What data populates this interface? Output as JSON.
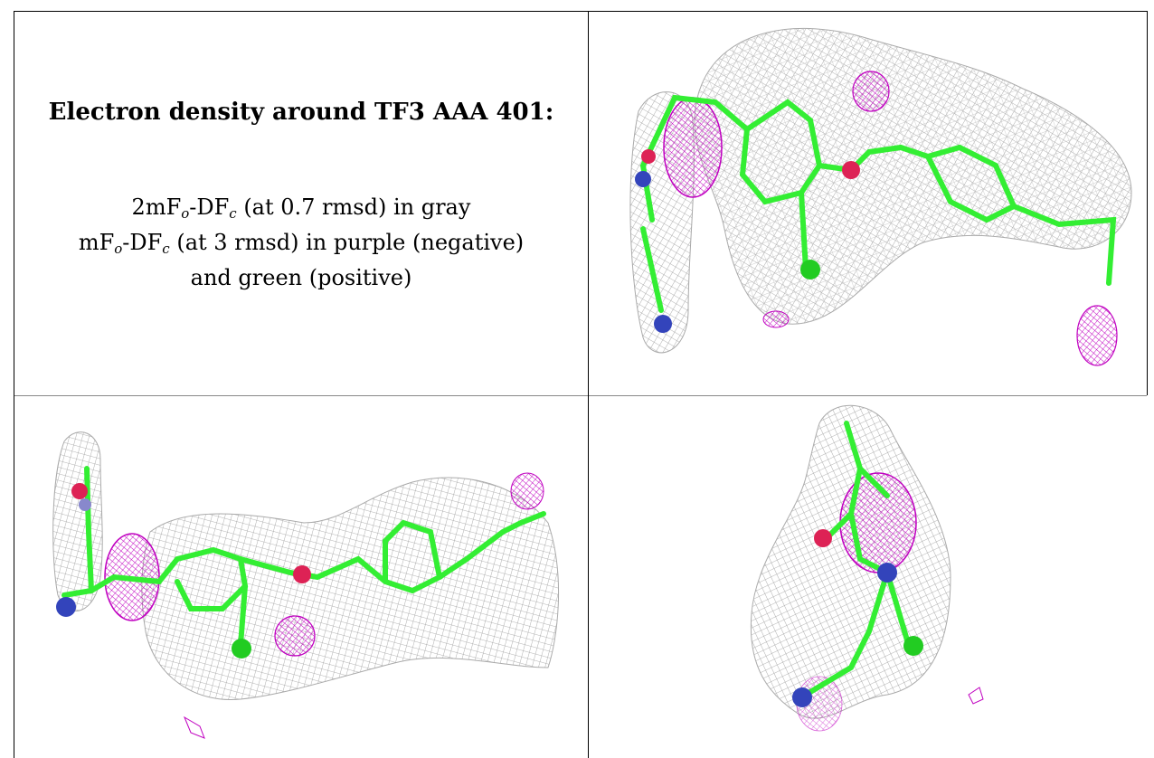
{
  "panel_text": {
    "title": "Electron density around TF3 AAA 401:",
    "line1_prefix": "2mF",
    "line1_sub1": "o",
    "line1_mid": "-DF",
    "line1_sub2": "c",
    "line1_suffix": " (at 0.7 rmsd) in gray",
    "line2_prefix": "mF",
    "line2_sub1": "o",
    "line2_mid": "-DF",
    "line2_sub2": "c",
    "line2_suffix": " (at 3 rmsd) in purple (negative)",
    "line3": "and green (positive)"
  },
  "views": [
    {
      "name": "density-view-top-right"
    },
    {
      "name": "density-view-bottom-left"
    },
    {
      "name": "density-view-bottom-right"
    }
  ],
  "colors": {
    "mesh_gray": "#a9a9a9",
    "negative_purple": "#c000c0",
    "carbon_green": "#33ee33",
    "nitrogen_blue": "#3344bb",
    "oxygen_red": "#dd2255",
    "chlorine_green": "#22cc22",
    "border": "#000000"
  }
}
